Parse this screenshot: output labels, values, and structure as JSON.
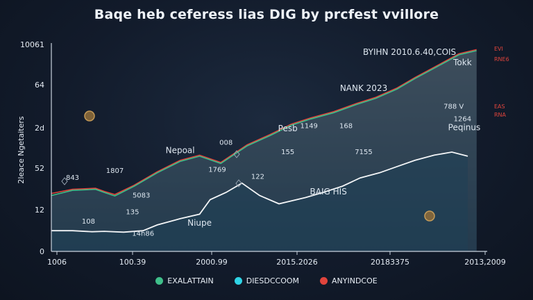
{
  "chart_data": {
    "type": "area",
    "title": "Baqe heb ceferess lias DIG by prcfest vvillore",
    "ylabel": "2leace Ngetaiters",
    "y_ticks": [
      "10061",
      "64",
      "2d",
      "52",
      "12",
      "0"
    ],
    "x_ticks": [
      "1006",
      "100.39",
      "2000.99",
      "2015.2026",
      "20183375",
      "2013,2009"
    ],
    "series": [
      {
        "name": "EXALATTAIN",
        "color": "#3fbf8a",
        "values": [
          [
            0,
            27
          ],
          [
            1.2,
            29.5
          ],
          [
            2.5,
            30
          ],
          [
            3,
            28.5
          ],
          [
            3.6,
            26.8
          ],
          [
            4.7,
            31.5
          ],
          [
            6,
            38
          ],
          [
            7.3,
            43.5
          ],
          [
            8.4,
            46
          ],
          [
            9.6,
            42.5
          ],
          [
            11.1,
            51
          ],
          [
            12.4,
            56
          ],
          [
            13.6,
            61
          ],
          [
            14.7,
            64
          ],
          [
            16,
            67
          ],
          [
            17.3,
            71
          ],
          [
            18.4,
            74
          ],
          [
            19.6,
            78.5
          ],
          [
            20.6,
            83.5
          ],
          [
            21.8,
            89
          ],
          [
            23.1,
            95
          ],
          [
            24.1,
            97
          ]
        ]
      },
      {
        "name": "DIESDCCOOM",
        "color": "#2fd4e6",
        "values": [
          [
            0,
            10
          ],
          [
            1.2,
            10
          ],
          [
            2.3,
            9.5
          ],
          [
            3,
            9.7
          ],
          [
            4.1,
            9.3
          ],
          [
            5.2,
            10
          ],
          [
            6,
            12.8
          ],
          [
            7.3,
            15.8
          ],
          [
            8.4,
            18
          ],
          [
            9,
            25
          ],
          [
            9.9,
            28.5
          ],
          [
            10.8,
            33
          ],
          [
            11.8,
            27
          ],
          [
            12.9,
            23
          ],
          [
            14.4,
            26
          ],
          [
            15.4,
            28.5
          ],
          [
            16.5,
            31.5
          ],
          [
            17.5,
            35.5
          ],
          [
            18.6,
            38
          ],
          [
            19.6,
            41
          ],
          [
            20.6,
            44
          ],
          [
            21.7,
            46.5
          ],
          [
            22.7,
            48
          ],
          [
            23.6,
            46
          ]
        ]
      },
      {
        "name": "ANYINDCOE",
        "color": "#e0443c",
        "values": [
          [
            0,
            28
          ],
          [
            1.2,
            30
          ],
          [
            2.5,
            30.5
          ],
          [
            3,
            29
          ],
          [
            3.6,
            27.5
          ],
          [
            4.7,
            32
          ],
          [
            6,
            38.5
          ],
          [
            7.3,
            44
          ],
          [
            8.4,
            46.5
          ],
          [
            9.6,
            43
          ],
          [
            11.1,
            51.5
          ],
          [
            12.4,
            56.5
          ],
          [
            13.6,
            61.5
          ],
          [
            14.7,
            64.5
          ],
          [
            16,
            67.5
          ],
          [
            17.3,
            71.5
          ],
          [
            18.4,
            74.5
          ],
          [
            19.6,
            79
          ],
          [
            20.6,
            84
          ],
          [
            21.8,
            89.5
          ],
          [
            23.1,
            95.5
          ],
          [
            24.1,
            97.5
          ]
        ]
      }
    ],
    "annotations": [
      {
        "text": "BYIHN 2010.6.40,COIS",
        "x": 20.3,
        "y": 95
      },
      {
        "text": "NANK 2023",
        "x": 17.7,
        "y": 77.5
      },
      {
        "text": "Tokk",
        "x": 23.3,
        "y": 90
      },
      {
        "text": "788 V",
        "x": 22.8,
        "y": 69
      },
      {
        "text": "1264",
        "x": 23.3,
        "y": 63
      },
      {
        "text": "Peqinus",
        "x": 23.4,
        "y": 58.5
      },
      {
        "text": "Pesb",
        "x": 13.4,
        "y": 58
      },
      {
        "text": "1149",
        "x": 14.6,
        "y": 59.5
      },
      {
        "text": "168",
        "x": 16.7,
        "y": 59.5
      },
      {
        "text": "155",
        "x": 13.4,
        "y": 47
      },
      {
        "text": "7155",
        "x": 17.7,
        "y": 47
      },
      {
        "text": "008",
        "x": 9.9,
        "y": 51.5
      },
      {
        "text": "Nepoal",
        "x": 7.3,
        "y": 47.5
      },
      {
        "text": "1769",
        "x": 9.4,
        "y": 38.5
      },
      {
        "text": "122",
        "x": 11.7,
        "y": 35
      },
      {
        "text": "BAIG HIS",
        "x": 15.7,
        "y": 27.5
      },
      {
        "text": "1807",
        "x": 3.6,
        "y": 38
      },
      {
        "text": "843",
        "x": 1.2,
        "y": 34.5
      },
      {
        "text": "5083",
        "x": 5.1,
        "y": 26
      },
      {
        "text": "135",
        "x": 4.6,
        "y": 18
      },
      {
        "text": "108",
        "x": 2.1,
        "y": 13.5
      },
      {
        "text": "14h86",
        "x": 5.2,
        "y": 7.5
      },
      {
        "text": "Niupe",
        "x": 8.4,
        "y": 12.5
      }
    ],
    "red_labels": [
      "EVI",
      "RNE6",
      "EAS",
      "RNA"
    ],
    "legend_position": "bottom",
    "grid": false
  },
  "legend": [
    {
      "label": "EXALATTAIN",
      "color": "#3fbf8a"
    },
    {
      "label": "DIESDCCOOM",
      "color": "#2fd4e6"
    },
    {
      "label": "ANYINDCOE",
      "color": "#e0443c"
    }
  ]
}
